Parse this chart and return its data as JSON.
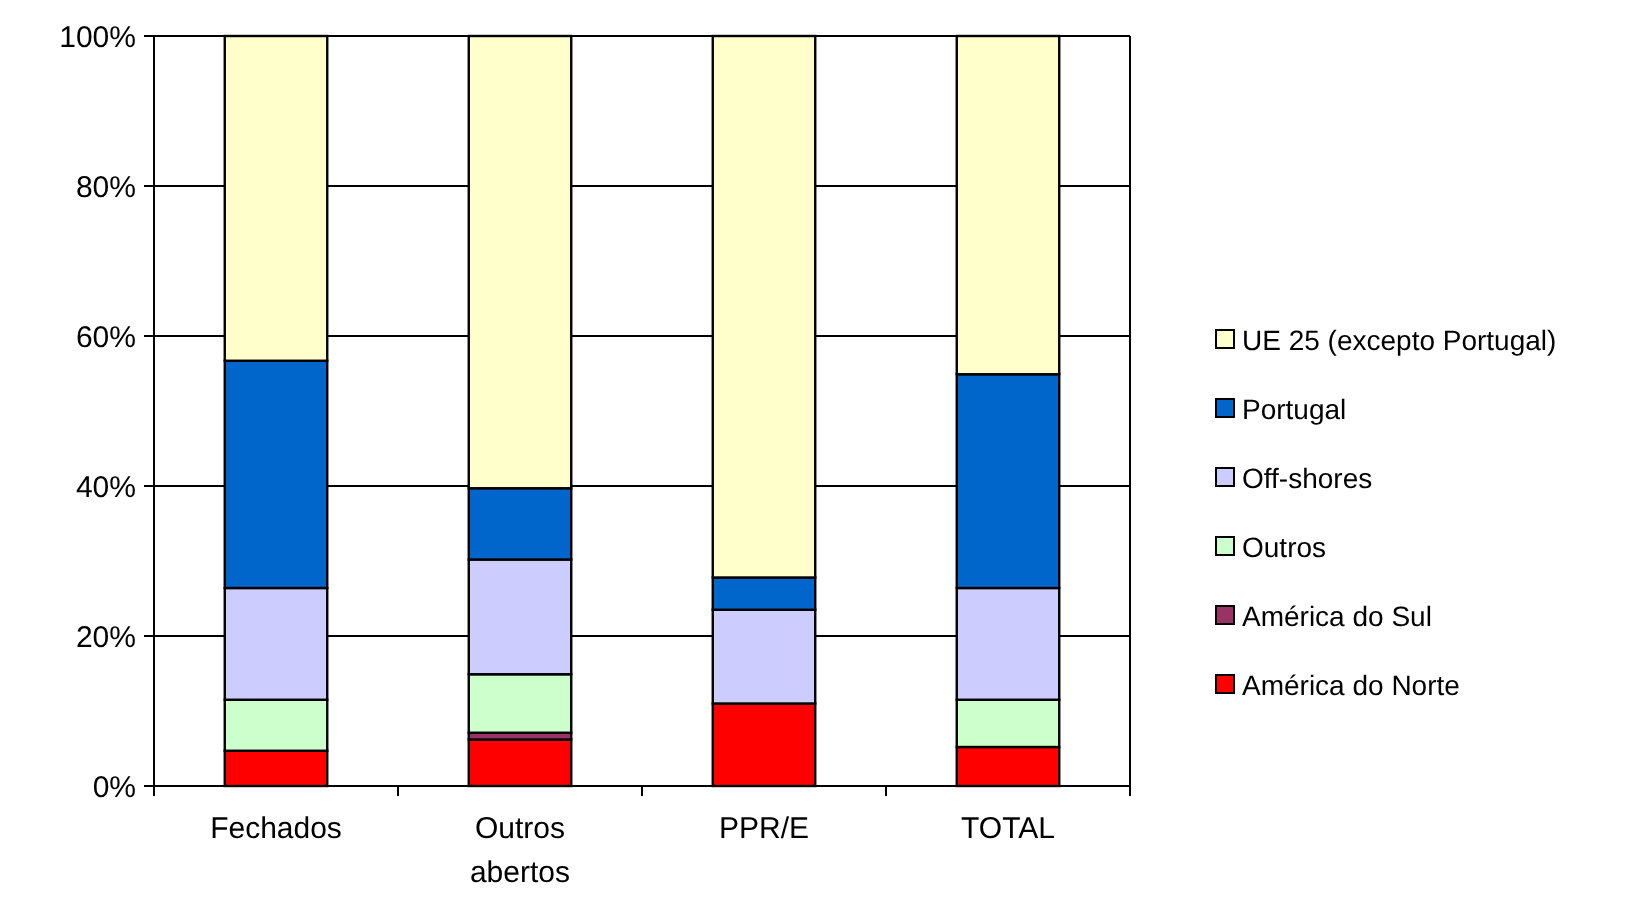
{
  "chart_data": {
    "type": "bar",
    "stacked": true,
    "categories": [
      "Fechados",
      "Outros abertos",
      "PPR/E",
      "TOTAL"
    ],
    "series": [
      {
        "name": "América do Norte",
        "color": "#ff0000",
        "values": [
          4.7,
          6.2,
          11.0,
          5.2
        ]
      },
      {
        "name": "América do Sul",
        "color": "#993366",
        "values": [
          0,
          0.9,
          0,
          0
        ]
      },
      {
        "name": "Outros",
        "color": "#ccffcc",
        "values": [
          6.8,
          7.8,
          0,
          6.3
        ]
      },
      {
        "name": "Off-shores",
        "color": "#ccccff",
        "values": [
          14.9,
          15.3,
          12.5,
          14.9
        ]
      },
      {
        "name": "Portugal",
        "color": "#0066cc",
        "values": [
          30.3,
          9.5,
          4.3,
          28.5
        ]
      },
      {
        "name": "UE 25 (excepto Portugal)",
        "color": "#ffffcc",
        "values": [
          43.3,
          60.3,
          72.2,
          45.1
        ]
      }
    ],
    "ylim": [
      0,
      100
    ],
    "yticks": [
      {
        "value": 0,
        "label": "0%"
      },
      {
        "value": 20,
        "label": "20%"
      },
      {
        "value": 40,
        "label": "40%"
      },
      {
        "value": 60,
        "label": "60%"
      },
      {
        "value": 80,
        "label": "80%"
      },
      {
        "value": 100,
        "label": "100%"
      }
    ],
    "grid": "y",
    "legend": "right"
  }
}
